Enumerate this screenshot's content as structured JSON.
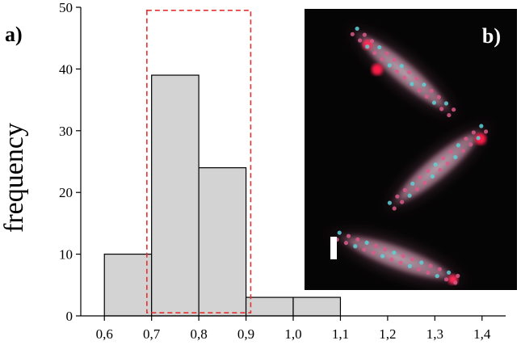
{
  "panel_a_label": "a)",
  "panel_b_label": "b)",
  "inset": {
    "description_icon": "microscopy-inset-image"
  },
  "colors": {
    "bar_fill": "#d3d3d3",
    "bar_stroke": "#000000",
    "highlight_box": "#e53030"
  },
  "chart_data": {
    "type": "bar",
    "title": "",
    "xlabel": "",
    "ylabel": "frequency",
    "bins": [
      {
        "start": 0.6,
        "end": 0.7,
        "value": 10
      },
      {
        "start": 0.7,
        "end": 0.8,
        "value": 39
      },
      {
        "start": 0.8,
        "end": 0.9,
        "value": 24
      },
      {
        "start": 0.9,
        "end": 1.0,
        "value": 3
      },
      {
        "start": 1.0,
        "end": 1.1,
        "value": 3
      }
    ],
    "xlim": [
      0.55,
      1.45
    ],
    "ylim": [
      0,
      50
    ],
    "x_ticks": [
      0.6,
      0.7,
      0.8,
      0.9,
      1.0,
      1.1,
      1.2,
      1.3,
      1.4
    ],
    "x_tick_labels": [
      "0,6",
      "0,7",
      "0,8",
      "0,9",
      "1,0",
      "1,1",
      "1,2",
      "1,3",
      "1,4"
    ],
    "y_ticks": [
      0,
      10,
      20,
      30,
      40,
      50
    ],
    "y_tick_labels": [
      "0",
      "10",
      "20",
      "30",
      "40",
      "50"
    ],
    "highlight_range": {
      "x": [
        0.69,
        0.91
      ],
      "y": [
        0.5,
        49.5
      ]
    },
    "grid": false,
    "legend": "none"
  }
}
